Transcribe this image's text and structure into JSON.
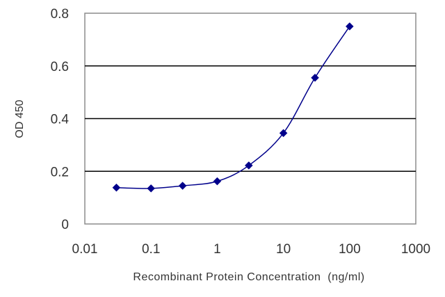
{
  "chart_data": {
    "type": "line",
    "xlabel": "Recombinant Protein Concentration  (ng/ml)",
    "ylabel": "OD 450",
    "xscale": "log",
    "xlim": [
      0.01,
      1000
    ],
    "ylim": [
      0,
      0.8
    ],
    "x_ticks": [
      "0.01",
      "0.1",
      "1",
      "10",
      "100",
      "1000"
    ],
    "y_ticks": [
      "0",
      "0.2",
      "0.4",
      "0.6",
      "0.8"
    ],
    "grid": "horizontal",
    "legend": "none",
    "series": [
      {
        "x": [
          0.03,
          0.1,
          0.3,
          1,
          3,
          10,
          30,
          100
        ],
        "y": [
          0.138,
          0.135,
          0.145,
          0.162,
          0.222,
          0.345,
          0.555,
          0.75
        ],
        "color": "#00008B",
        "marker": "diamond"
      }
    ],
    "colors": {
      "line": "#00008B",
      "grid": "#000000",
      "frame": "#8c8c8c"
    }
  }
}
